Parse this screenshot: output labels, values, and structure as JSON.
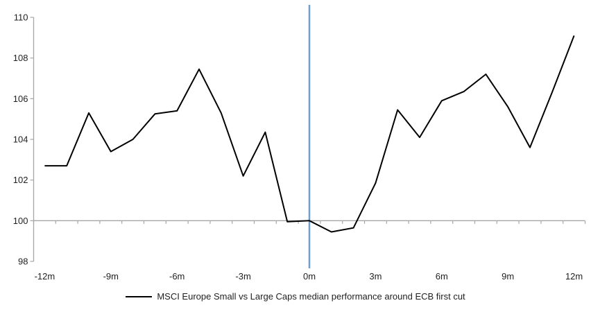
{
  "page": {
    "background": "#ffffff"
  },
  "chart_data": {
    "type": "line",
    "legend": "MSCI Europe Small vs Large Caps median performance around ECB first cut",
    "legend_position": "bottom-center",
    "categories": [
      "-12m",
      "-11m",
      "-10m",
      "-9m",
      "-8m",
      "-7m",
      "-6m",
      "-5m",
      "-4m",
      "-3m",
      "-2m",
      "-1m",
      "0m",
      "1m",
      "2m",
      "3m",
      "4m",
      "5m",
      "6m",
      "7m",
      "8m",
      "9m",
      "10m",
      "11m",
      "12m"
    ],
    "series": [
      {
        "name": "MSCI Europe Small vs Large Caps median performance around ECB first cut",
        "values": [
          102.7,
          102.7,
          105.3,
          103.4,
          104.0,
          105.25,
          105.4,
          107.45,
          105.3,
          102.2,
          104.35,
          99.95,
          100.0,
          99.45,
          99.65,
          101.85,
          105.45,
          104.1,
          105.9,
          106.35,
          107.2,
          105.6,
          103.6,
          106.3,
          109.1
        ]
      }
    ],
    "ylim": [
      98,
      110
    ],
    "y_ticks": [
      98,
      100,
      102,
      104,
      106,
      108,
      110
    ],
    "x_tick_labels": [
      "-12m",
      "-9m",
      "-6m",
      "-3m",
      "0m",
      "3m",
      "6m",
      "9m",
      "12m"
    ],
    "x_label_step": 3,
    "baseline_value": 100,
    "event_line_category": "0m",
    "grid": "off",
    "colors": {
      "series_line": "#000000",
      "event_line": "#6FA0CD",
      "axis": "#A6A6A6",
      "text": "#1F1F1F"
    }
  }
}
